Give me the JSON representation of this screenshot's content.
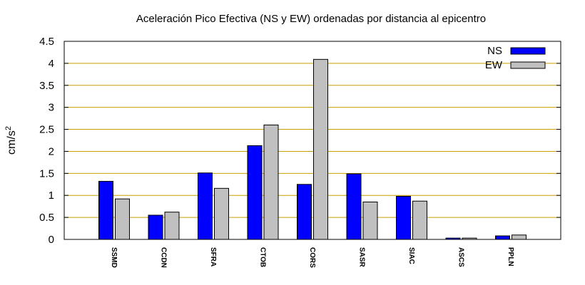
{
  "chart_data": {
    "type": "bar",
    "title": "Aceleración Pico Efectiva (NS y EW) ordenadas por distancia al epicentro",
    "ylabel": "cm/s",
    "ylabel_sup": "2",
    "xlabel": "",
    "ylim": [
      0,
      4.5
    ],
    "yticks": [
      0,
      0.5,
      1,
      1.5,
      2,
      2.5,
      3,
      3.5,
      4,
      4.5
    ],
    "ytick_labels": [
      "0",
      "0.5",
      "1",
      "1.5",
      "2",
      "2.5",
      "3",
      "3.5",
      "4",
      "4.5"
    ],
    "grid": true,
    "grid_color": "#c8a000",
    "legend_position": "top-right",
    "categories": [
      "SSMD",
      "CCDN",
      "SFRA",
      "CTOB",
      "CORS",
      "SASR",
      "SIAC",
      "ASCS",
      "PPLN"
    ],
    "series": [
      {
        "name": "NS",
        "color": "#0000ff",
        "values": [
          1.32,
          0.55,
          1.51,
          2.13,
          1.25,
          1.49,
          0.98,
          0.03,
          0.08
        ]
      },
      {
        "name": "EW",
        "color": "#c0c0c0",
        "values": [
          0.92,
          0.62,
          1.16,
          2.6,
          4.09,
          0.85,
          0.87,
          0.03,
          0.1
        ]
      }
    ]
  }
}
